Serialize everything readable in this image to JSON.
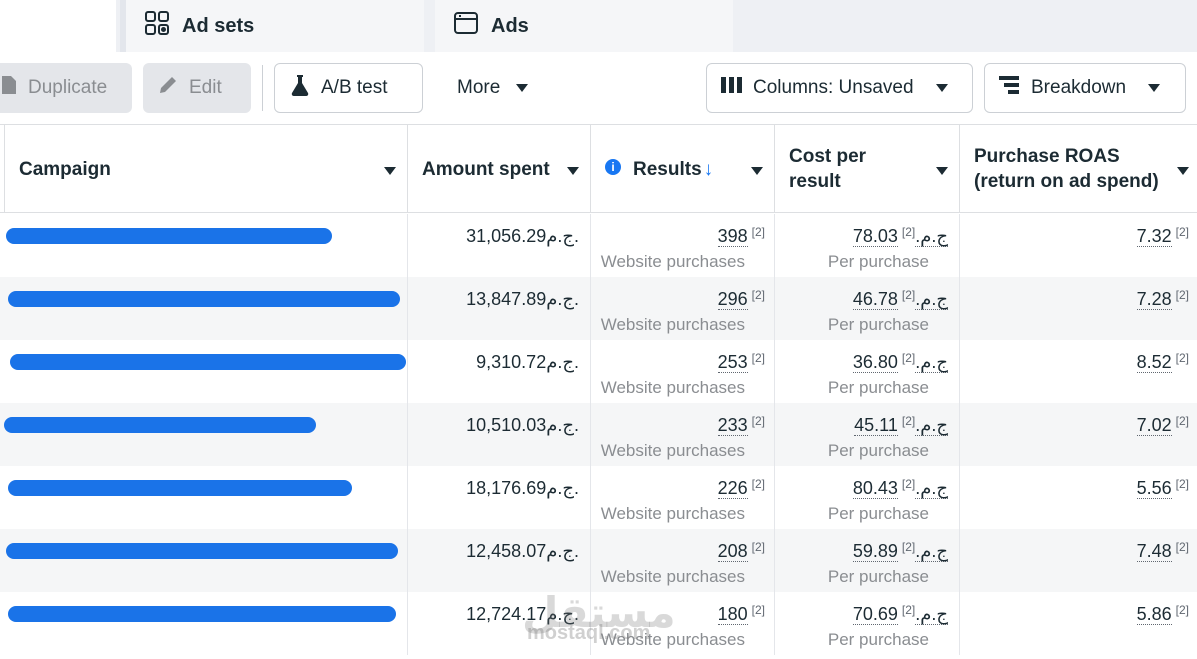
{
  "tabs": {
    "adsets_label": "Ad sets",
    "ads_label": "Ads"
  },
  "toolbar": {
    "duplicate_label": "Duplicate",
    "edit_label": "Edit",
    "abtest_label": "A/B test",
    "more_label": "More",
    "columns_label": "Columns: Unsaved",
    "breakdown_label": "Breakdown"
  },
  "table": {
    "headers": {
      "campaign": "Campaign",
      "amount_spent": "Amount spent",
      "results": "Results",
      "cost_per_result_1": "Cost per",
      "cost_per_result_2": "result",
      "roas_1": "Purchase ROAS",
      "roas_2": "(return on ad spend)"
    },
    "footnote": "[2]",
    "results_sub": "Website purchases",
    "cost_sub": "Per purchase",
    "currency": "ج.م.",
    "rows": [
      {
        "spent": "31,056.29",
        "results": "398",
        "cost": "78.03",
        "roas": "7.32"
      },
      {
        "spent": "13,847.89",
        "results": "296",
        "cost": "46.78",
        "roas": "7.28"
      },
      {
        "spent": "9,310.72",
        "results": "253",
        "cost": "36.80",
        "roas": "8.52"
      },
      {
        "spent": "10,510.03",
        "results": "233",
        "cost": "45.11",
        "roas": "7.02"
      },
      {
        "spent": "18,176.69",
        "results": "226",
        "cost": "80.43",
        "roas": "5.56"
      },
      {
        "spent": "12,458.07",
        "results": "208",
        "cost": "59.89",
        "roas": "7.48"
      },
      {
        "spent": "12,724.17",
        "results": "180",
        "cost": "70.69",
        "roas": "5.86"
      }
    ]
  },
  "watermark": {
    "arabic": "مستقل",
    "latin": "mostaql.com"
  }
}
